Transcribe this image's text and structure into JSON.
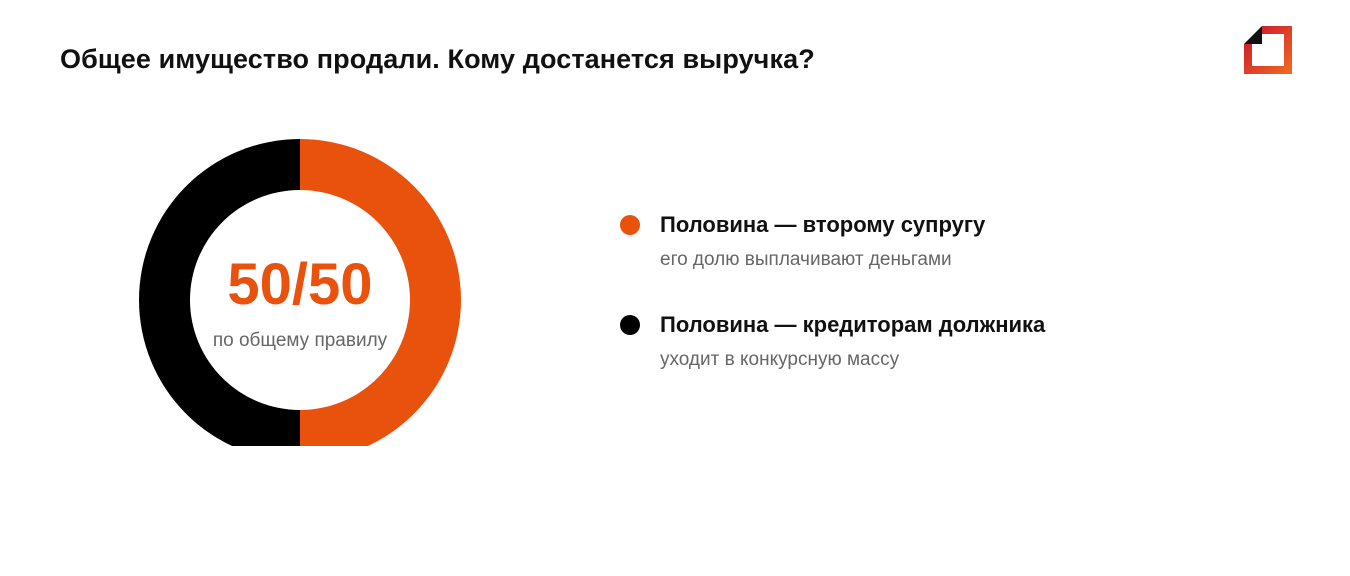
{
  "page": {
    "title": "Общее имущество продали. Кому достанется выручка?"
  },
  "logo": {
    "icon": "brand-logo-icon",
    "colors": [
      "#111111",
      "#c8102e",
      "#f26b21"
    ]
  },
  "chart_data": {
    "type": "pie",
    "donut": true,
    "center_value": "50/50",
    "center_caption": "по общему правилу",
    "series": [
      {
        "name": "Половина — второму супругу",
        "description": "его долю выплачивают деньгами",
        "value": 50,
        "color": "#e8520c"
      },
      {
        "name": "Половина — кредиторам должника",
        "description": "уходит в конкурсную массу",
        "value": 50,
        "color": "#000000"
      }
    ],
    "legend_position": "right"
  }
}
